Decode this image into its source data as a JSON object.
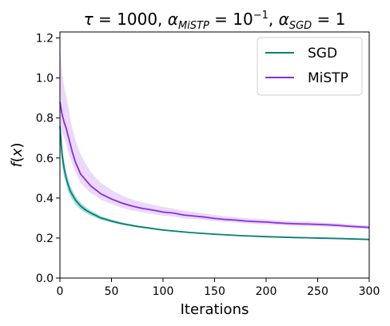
{
  "chart_data": {
    "type": "line",
    "title_parts": {
      "tau_sym": "τ",
      "tau_val": " = 1000, ",
      "alpha1_sym": "α",
      "alpha1_sub": "MiSTP",
      "alpha1_val": " = 10",
      "alpha1_exp": "−1",
      "sep": ", ",
      "alpha2_sym": "α",
      "alpha2_sub": "SGD",
      "alpha2_val": " = 1"
    },
    "xlabel": "Iterations",
    "ylabel_parts": {
      "f": "f",
      "open": "(",
      "x": "x",
      "close": ")"
    },
    "xlim": [
      0,
      300
    ],
    "ylim": [
      0.0,
      1.23
    ],
    "xticks": [
      0,
      50,
      100,
      150,
      200,
      250,
      300
    ],
    "xtick_labels": [
      "0",
      "50",
      "100",
      "150",
      "200",
      "250",
      "300"
    ],
    "yticks": [
      0.0,
      0.2,
      0.4,
      0.6,
      0.8,
      1.0,
      1.2
    ],
    "ytick_labels": [
      "0.0",
      "0.2",
      "0.4",
      "0.6",
      "0.8",
      "1.0",
      "1.2"
    ],
    "grid": false,
    "legend_position": "top-right",
    "series": [
      {
        "name": "SGD",
        "color": "#0b7d78",
        "band_color": "#4fc4b4",
        "x": [
          0,
          2,
          4,
          6,
          8,
          10,
          15,
          20,
          25,
          30,
          40,
          50,
          60,
          75,
          100,
          125,
          150,
          175,
          200,
          225,
          250,
          275,
          300
        ],
        "y": [
          0.76,
          0.62,
          0.55,
          0.5,
          0.465,
          0.435,
          0.39,
          0.36,
          0.34,
          0.325,
          0.3,
          0.285,
          0.272,
          0.258,
          0.24,
          0.228,
          0.219,
          0.212,
          0.207,
          0.203,
          0.2,
          0.197,
          0.193
        ],
        "lower": [
          0.69,
          0.57,
          0.51,
          0.47,
          0.435,
          0.41,
          0.37,
          0.343,
          0.326,
          0.313,
          0.291,
          0.278,
          0.266,
          0.253,
          0.236,
          0.225,
          0.216,
          0.21,
          0.205,
          0.201,
          0.198,
          0.195,
          0.191
        ],
        "upper": [
          0.83,
          0.67,
          0.59,
          0.53,
          0.495,
          0.46,
          0.41,
          0.377,
          0.354,
          0.337,
          0.309,
          0.292,
          0.278,
          0.263,
          0.244,
          0.231,
          0.222,
          0.214,
          0.209,
          0.205,
          0.202,
          0.199,
          0.195
        ]
      },
      {
        "name": "MiSTP",
        "color": "#8a2be2",
        "band_color": "#c79af0",
        "x": [
          0,
          2,
          4,
          6,
          8,
          10,
          12,
          15,
          20,
          25,
          30,
          35,
          40,
          50,
          60,
          70,
          80,
          90,
          100,
          110,
          120,
          130,
          140,
          150,
          160,
          170,
          180,
          190,
          200,
          210,
          220,
          230,
          240,
          250,
          260,
          270,
          280,
          290,
          300
        ],
        "y": [
          0.88,
          0.82,
          0.78,
          0.75,
          0.71,
          0.67,
          0.63,
          0.58,
          0.52,
          0.49,
          0.46,
          0.44,
          0.42,
          0.395,
          0.375,
          0.36,
          0.348,
          0.34,
          0.33,
          0.325,
          0.315,
          0.31,
          0.305,
          0.298,
          0.293,
          0.29,
          0.285,
          0.282,
          0.28,
          0.276,
          0.273,
          0.271,
          0.27,
          0.268,
          0.266,
          0.263,
          0.259,
          0.256,
          0.253
        ],
        "lower": [
          0.78,
          0.73,
          0.7,
          0.67,
          0.63,
          0.6,
          0.57,
          0.53,
          0.475,
          0.45,
          0.425,
          0.41,
          0.39,
          0.37,
          0.352,
          0.338,
          0.328,
          0.32,
          0.312,
          0.307,
          0.299,
          0.295,
          0.29,
          0.284,
          0.28,
          0.277,
          0.273,
          0.27,
          0.268,
          0.265,
          0.262,
          0.26,
          0.259,
          0.258,
          0.256,
          0.253,
          0.25,
          0.247,
          0.244
        ],
        "upper": [
          1.17,
          1.03,
          0.96,
          0.91,
          0.86,
          0.8,
          0.75,
          0.69,
          0.62,
          0.57,
          0.53,
          0.5,
          0.475,
          0.44,
          0.413,
          0.393,
          0.378,
          0.367,
          0.355,
          0.347,
          0.336,
          0.33,
          0.323,
          0.315,
          0.309,
          0.305,
          0.299,
          0.296,
          0.293,
          0.288,
          0.285,
          0.283,
          0.282,
          0.279,
          0.277,
          0.274,
          0.269,
          0.266,
          0.263
        ]
      }
    ]
  }
}
